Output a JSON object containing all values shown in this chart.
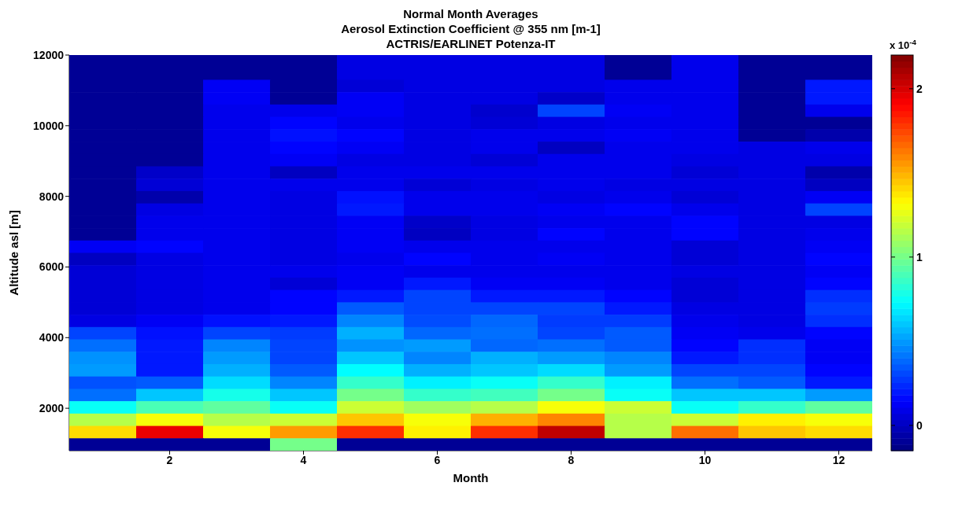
{
  "chart_data": {
    "type": "heatmap",
    "title": "Normal Month Averages",
    "subtitle": "Aerosol Extinction Coefficient @ 355 nm [m-1]\nACTRIS/EARLINET Potenza-IT",
    "xlabel": "Month",
    "ylabel": "Altitude asl [m]",
    "clabel": "x 10$^{-4}$",
    "x": [
      1,
      2,
      3,
      4,
      5,
      6,
      7,
      8,
      9,
      10,
      11,
      12
    ],
    "xlim": [
      0.5,
      12.5
    ],
    "xticks": [
      2,
      4,
      6,
      8,
      10,
      12
    ],
    "ylim": [
      800,
      12000
    ],
    "yticks": [
      2000,
      4000,
      6000,
      8000,
      10000,
      12000
    ],
    "clim": [
      -0.15,
      2.2
    ],
    "cticks": [
      0,
      1,
      2
    ],
    "cells": [
      [
        -0.1,
        -0.1,
        -0.1,
        -0.1,
        0.08,
        0.08,
        0.08,
        0.08,
        -0.1,
        0.1,
        -0.1,
        -0.1
      ],
      [
        -0.1,
        -0.1,
        -0.1,
        -0.1,
        0.08,
        0.08,
        0.08,
        0.08,
        -0.1,
        0.1,
        -0.1,
        -0.1
      ],
      [
        -0.1,
        -0.1,
        0.12,
        -0.1,
        0.05,
        0.08,
        0.08,
        0.08,
        0.1,
        0.1,
        -0.1,
        0.2
      ],
      [
        -0.1,
        -0.1,
        0.12,
        -0.1,
        0.12,
        0.08,
        0.08,
        0.02,
        0.1,
        0.1,
        -0.1,
        0.2
      ],
      [
        -0.1,
        -0.1,
        0.1,
        0.1,
        0.12,
        0.08,
        0.03,
        0.3,
        0.12,
        0.1,
        -0.1,
        0.1
      ],
      [
        -0.1,
        -0.1,
        0.1,
        0.15,
        0.1,
        0.08,
        0.05,
        0.08,
        0.1,
        0.1,
        -0.1,
        -0.1
      ],
      [
        -0.1,
        -0.1,
        0.1,
        0.18,
        0.15,
        0.08,
        0.1,
        0.1,
        0.12,
        0.1,
        -0.1,
        -0.05
      ],
      [
        -0.1,
        -0.1,
        0.1,
        0.15,
        0.12,
        0.08,
        0.1,
        0.0,
        0.1,
        0.1,
        0.08,
        0.1
      ],
      [
        -0.1,
        -0.1,
        0.1,
        0.12,
        0.08,
        0.08,
        0.05,
        0.1,
        0.1,
        0.08,
        0.08,
        0.08
      ],
      [
        -0.1,
        0.02,
        0.1,
        0.0,
        0.1,
        0.1,
        0.1,
        0.1,
        0.1,
        0.05,
        0.08,
        -0.05
      ],
      [
        -0.1,
        0.05,
        0.1,
        0.1,
        0.1,
        0.05,
        0.08,
        0.1,
        0.08,
        0.08,
        0.08,
        0.0
      ],
      [
        -0.1,
        -0.05,
        0.1,
        0.08,
        0.18,
        0.1,
        0.1,
        0.08,
        0.1,
        0.05,
        0.08,
        0.12
      ],
      [
        -0.1,
        0.08,
        0.1,
        0.08,
        0.2,
        0.1,
        0.1,
        0.12,
        0.15,
        0.1,
        0.08,
        0.3
      ],
      [
        -0.1,
        0.1,
        0.1,
        0.08,
        0.12,
        0.02,
        0.08,
        0.1,
        0.1,
        0.15,
        0.08,
        0.08
      ],
      [
        -0.1,
        0.1,
        0.1,
        0.08,
        0.12,
        0.0,
        0.08,
        0.15,
        0.1,
        0.15,
        0.08,
        0.1
      ],
      [
        0.12,
        0.15,
        0.1,
        0.08,
        0.12,
        0.1,
        0.1,
        0.1,
        0.1,
        0.05,
        0.08,
        0.12
      ],
      [
        0.0,
        0.08,
        0.1,
        0.08,
        0.1,
        0.15,
        0.1,
        0.12,
        0.1,
        0.05,
        0.08,
        0.15
      ],
      [
        0.05,
        0.08,
        0.1,
        0.1,
        0.12,
        0.1,
        0.1,
        0.1,
        0.1,
        0.08,
        0.08,
        0.12
      ],
      [
        0.05,
        0.08,
        0.1,
        0.05,
        0.12,
        0.2,
        0.12,
        0.12,
        0.1,
        0.05,
        0.08,
        0.15
      ],
      [
        0.05,
        0.08,
        0.1,
        0.15,
        0.2,
        0.3,
        0.2,
        0.2,
        0.15,
        0.05,
        0.08,
        0.25
      ],
      [
        0.05,
        0.08,
        0.1,
        0.15,
        0.35,
        0.3,
        0.3,
        0.3,
        0.2,
        0.08,
        0.08,
        0.28
      ],
      [
        0.08,
        0.12,
        0.18,
        0.2,
        0.45,
        0.32,
        0.38,
        0.28,
        0.28,
        0.1,
        0.08,
        0.25
      ],
      [
        0.3,
        0.18,
        0.3,
        0.28,
        0.55,
        0.38,
        0.4,
        0.3,
        0.35,
        0.12,
        0.1,
        0.15
      ],
      [
        0.4,
        0.2,
        0.45,
        0.3,
        0.48,
        0.5,
        0.38,
        0.4,
        0.35,
        0.15,
        0.25,
        0.12
      ],
      [
        0.48,
        0.2,
        0.5,
        0.3,
        0.6,
        0.45,
        0.55,
        0.5,
        0.45,
        0.2,
        0.25,
        0.12
      ],
      [
        0.5,
        0.2,
        0.55,
        0.35,
        0.73,
        0.55,
        0.6,
        0.65,
        0.5,
        0.3,
        0.3,
        0.15
      ],
      [
        0.33,
        0.35,
        0.65,
        0.45,
        0.85,
        0.7,
        0.75,
        0.85,
        0.7,
        0.4,
        0.35,
        0.2
      ],
      [
        0.4,
        0.6,
        0.78,
        0.6,
        1.0,
        0.85,
        0.88,
        1.0,
        0.75,
        0.6,
        0.6,
        0.5
      ],
      [
        0.75,
        0.9,
        0.95,
        0.75,
        1.2,
        1.1,
        1.15,
        1.3,
        1.2,
        0.75,
        0.85,
        0.95
      ],
      [
        1.15,
        1.3,
        1.15,
        1.2,
        1.45,
        1.3,
        1.5,
        1.6,
        1.15,
        1.2,
        1.35,
        1.3
      ],
      [
        1.4,
        1.95,
        1.3,
        1.55,
        1.8,
        1.35,
        1.8,
        2.05,
        1.15,
        1.65,
        1.45,
        1.4
      ],
      [
        -0.1,
        -0.1,
        -0.1,
        1.0,
        -0.1,
        -0.1,
        -0.1,
        -0.1,
        -0.1,
        -0.1,
        -0.1,
        -0.1
      ]
    ]
  }
}
